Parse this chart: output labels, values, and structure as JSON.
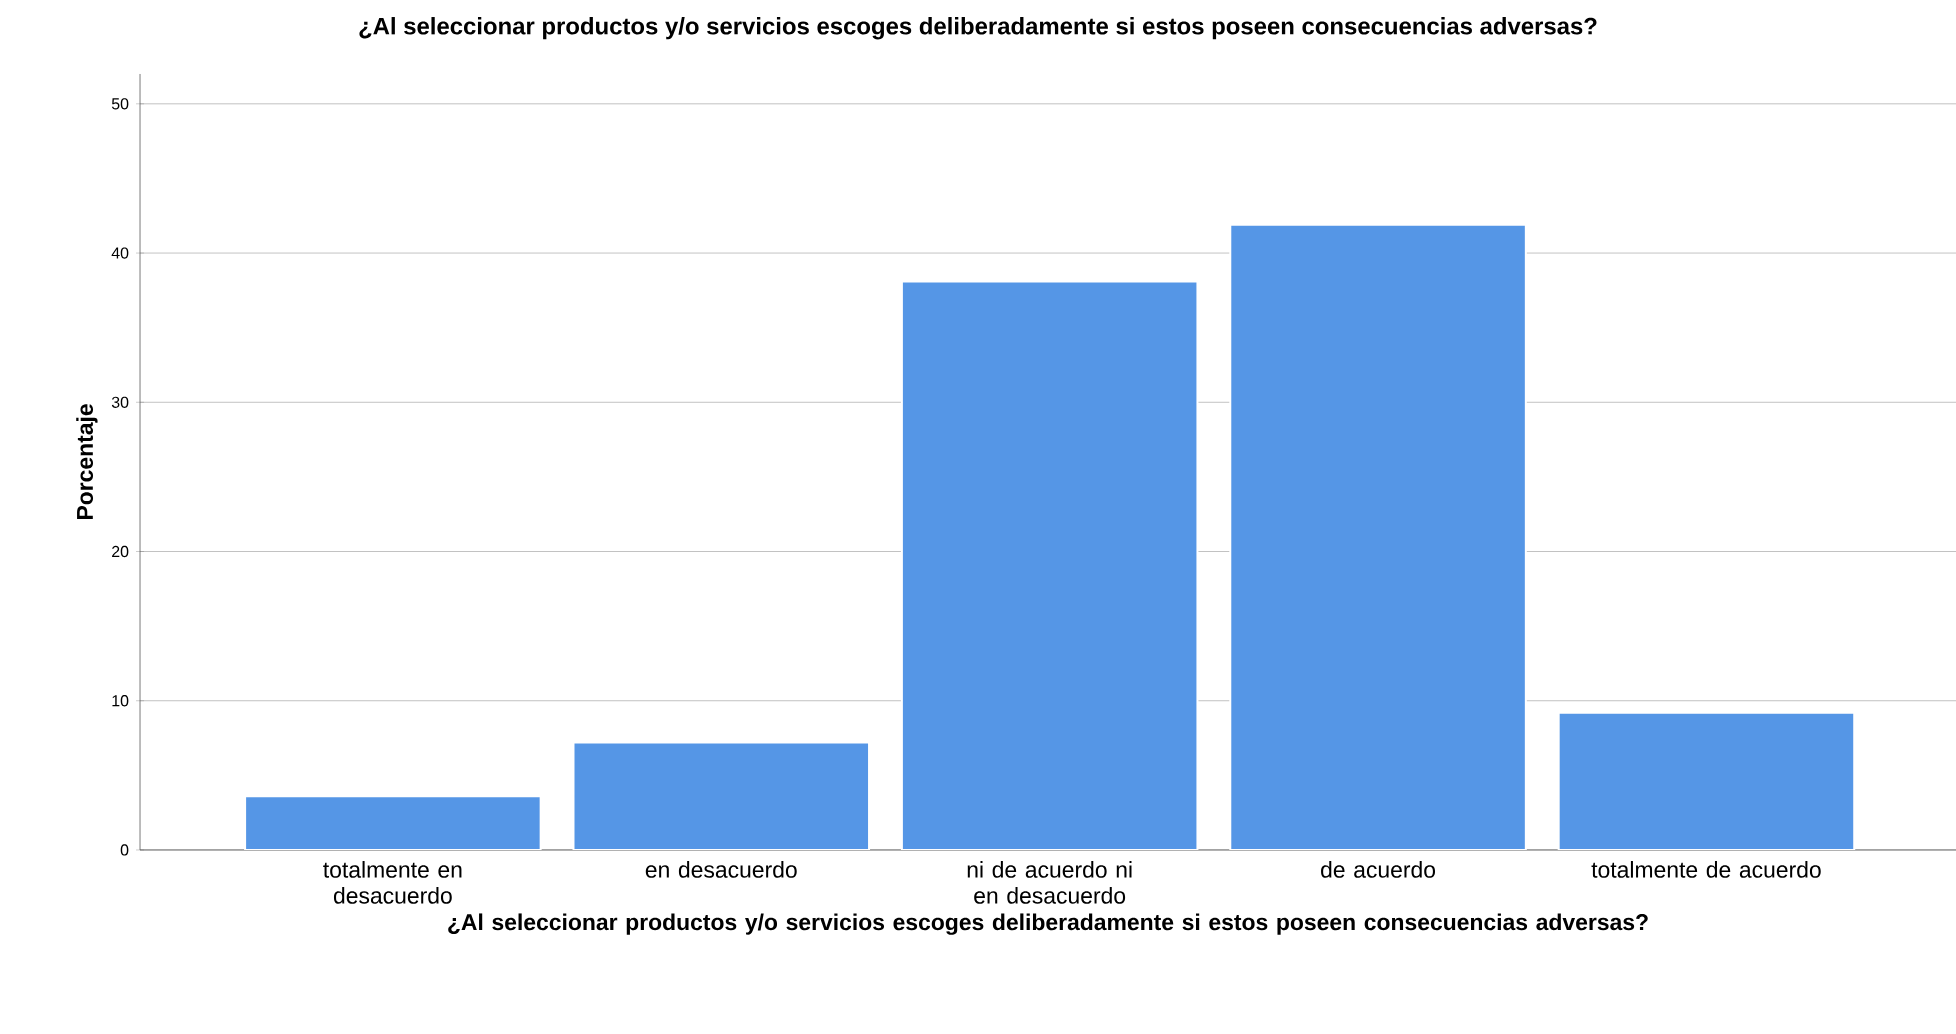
{
  "chart_data": {
    "type": "bar",
    "title": "¿Al seleccionar productos y/o servicios escoges deliberadamente si estos poseen consecuencias adversas?",
    "xlabel": "¿Al seleccionar productos y/o servicios escoges deliberadamente si estos poseen consecuencias adversas?",
    "ylabel": "Porcentaje",
    "categories": [
      "totalmente en desacuerdo",
      "en desacuerdo",
      "ni de acuerdo ni en desacuerdo",
      "de acuerdo",
      "totalmente de acuerdo"
    ],
    "values": [
      3.6,
      7.2,
      38.1,
      41.9,
      9.2
    ],
    "color": "#5596e6",
    "ylim": [
      0,
      52
    ],
    "yticks": [
      0,
      10,
      20,
      30,
      40,
      50
    ],
    "grid": "y"
  }
}
